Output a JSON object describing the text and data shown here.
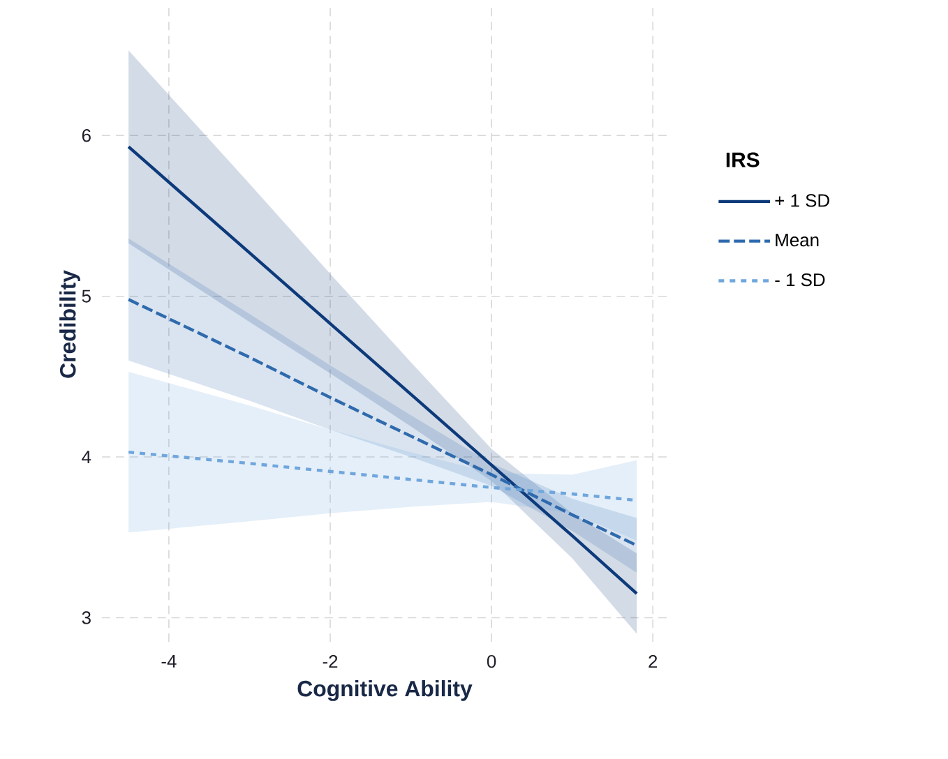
{
  "chart_data": {
    "type": "line",
    "xlabel": "Cognitive Ability",
    "ylabel": "Credibility",
    "legend_title": "IRS",
    "x": [
      -4.5,
      -3,
      -2,
      -1,
      0,
      1,
      1.8
    ],
    "series": [
      {
        "name": "+ 1 SD",
        "color": "#0d3a7a",
        "line_style": "solid",
        "values": [
          5.93,
          5.27,
          4.83,
          4.39,
          3.95,
          3.51,
          3.15
        ],
        "lower": [
          5.33,
          4.84,
          4.52,
          4.19,
          3.85,
          3.37,
          2.9
        ],
        "upper": [
          6.53,
          5.7,
          5.14,
          4.59,
          4.05,
          3.65,
          3.4
        ]
      },
      {
        "name": "Mean",
        "color": "#2f6aad",
        "line_style": "dashed",
        "values": [
          4.98,
          4.62,
          4.37,
          4.13,
          3.89,
          3.64,
          3.45
        ],
        "lower": [
          4.6,
          4.35,
          4.17,
          4.0,
          3.82,
          3.54,
          3.28
        ],
        "upper": [
          5.36,
          4.89,
          4.57,
          4.26,
          3.96,
          3.74,
          3.62
        ]
      },
      {
        "name": "- 1 SD",
        "color": "#6fa6dc",
        "line_style": "dotted",
        "values": [
          4.03,
          3.96,
          3.91,
          3.86,
          3.81,
          3.77,
          3.73
        ],
        "lower": [
          3.53,
          3.6,
          3.65,
          3.69,
          3.72,
          3.65,
          3.48
        ],
        "upper": [
          4.53,
          4.32,
          4.17,
          4.03,
          3.9,
          3.89,
          3.98
        ]
      }
    ],
    "xlim": [
      -4.83,
      2.18
    ],
    "ylim": [
      2.85,
      6.8
    ],
    "xticks": [
      -4,
      -2,
      0,
      2
    ],
    "yticks": [
      3,
      4,
      5,
      6
    ],
    "grid": true,
    "legend": "right",
    "marker": "none"
  }
}
